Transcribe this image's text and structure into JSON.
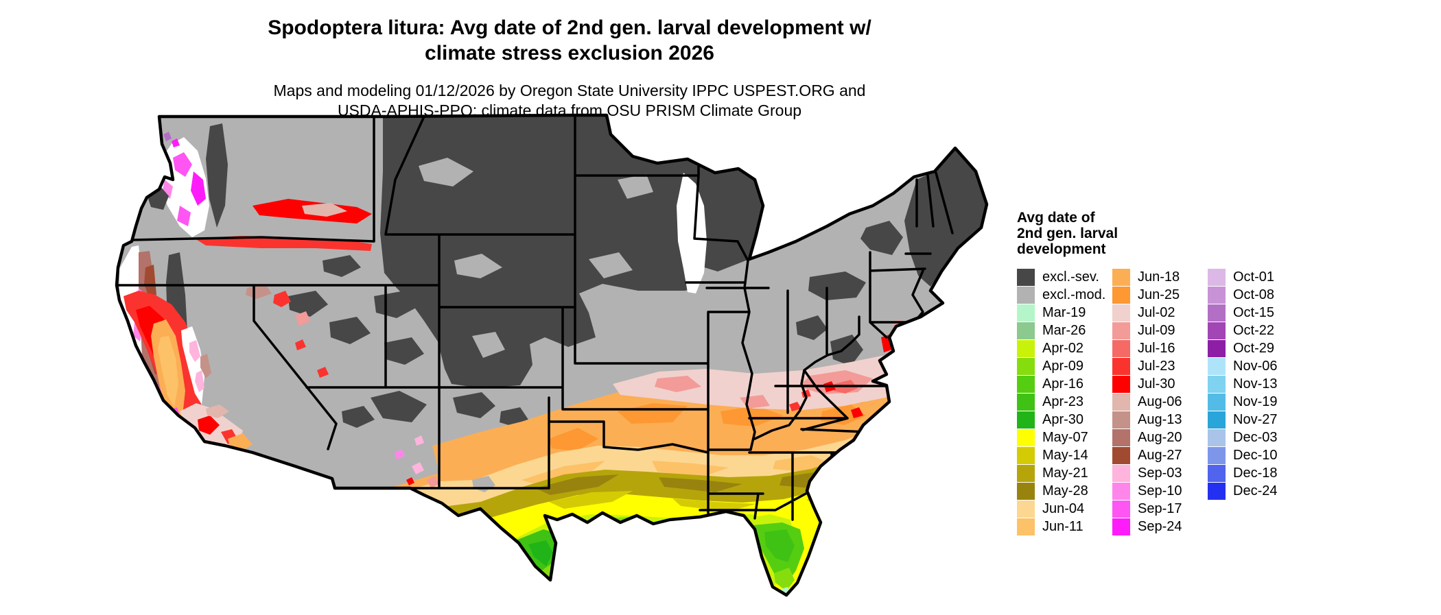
{
  "title": {
    "line1": "Spodoptera litura: Avg date of 2nd gen. larval development w/",
    "line2": "climate stress exclusion 2026"
  },
  "subtitle": {
    "line1": "Maps and modeling 01/12/2026 by Oregon State University IPPC USPEST.ORG and",
    "line2": "USDA-APHIS-PPQ; climate data from OSU PRISM Climate Group"
  },
  "legend": {
    "title_lines": [
      "Avg date of",
      "2nd gen. larval",
      "development"
    ],
    "columns": [
      {
        "entries": [
          {
            "label": "excl.-sev.",
            "color_key": "excl_sev"
          },
          {
            "label": "excl.-mod.",
            "color_key": "excl_mod"
          },
          {
            "label": "Mar-19",
            "color_key": "mar19"
          },
          {
            "label": "Mar-26",
            "color_key": "mar26"
          },
          {
            "label": "Apr-02",
            "color_key": "apr02"
          },
          {
            "label": "Apr-09",
            "color_key": "apr09"
          },
          {
            "label": "Apr-16",
            "color_key": "apr16"
          },
          {
            "label": "Apr-23",
            "color_key": "apr23"
          },
          {
            "label": "Apr-30",
            "color_key": "apr30"
          },
          {
            "label": "May-07",
            "color_key": "may07"
          },
          {
            "label": "May-14",
            "color_key": "may14"
          },
          {
            "label": "May-21",
            "color_key": "may21"
          },
          {
            "label": "May-28",
            "color_key": "may28"
          },
          {
            "label": "Jun-04",
            "color_key": "jun04"
          },
          {
            "label": "Jun-11",
            "color_key": "jun11"
          }
        ]
      },
      {
        "entries": [
          {
            "label": "Jun-18",
            "color_key": "jun18"
          },
          {
            "label": "Jun-25",
            "color_key": "jun25"
          },
          {
            "label": "Jul-02",
            "color_key": "jul02"
          },
          {
            "label": "Jul-09",
            "color_key": "jul09"
          },
          {
            "label": "Jul-16",
            "color_key": "jul16"
          },
          {
            "label": "Jul-23",
            "color_key": "jul23"
          },
          {
            "label": "Jul-30",
            "color_key": "jul30"
          },
          {
            "label": "Aug-06",
            "color_key": "aug06"
          },
          {
            "label": "Aug-13",
            "color_key": "aug13"
          },
          {
            "label": "Aug-20",
            "color_key": "aug20"
          },
          {
            "label": "Aug-27",
            "color_key": "aug27"
          },
          {
            "label": "Sep-03",
            "color_key": "sep03"
          },
          {
            "label": "Sep-10",
            "color_key": "sep10"
          },
          {
            "label": "Sep-17",
            "color_key": "sep17"
          },
          {
            "label": "Sep-24",
            "color_key": "sep24"
          }
        ]
      },
      {
        "entries": [
          {
            "label": "Oct-01",
            "color_key": "oct01"
          },
          {
            "label": "Oct-08",
            "color_key": "oct08"
          },
          {
            "label": "Oct-15",
            "color_key": "oct15"
          },
          {
            "label": "Oct-22",
            "color_key": "oct22"
          },
          {
            "label": "Oct-29",
            "color_key": "oct29"
          },
          {
            "label": "Nov-06",
            "color_key": "nov06"
          },
          {
            "label": "Nov-13",
            "color_key": "nov13"
          },
          {
            "label": "Nov-19",
            "color_key": "nov19"
          },
          {
            "label": "Nov-27",
            "color_key": "nov27"
          },
          {
            "label": "Dec-03",
            "color_key": "dec03"
          },
          {
            "label": "Dec-10",
            "color_key": "dec10"
          },
          {
            "label": "Dec-18",
            "color_key": "dec18"
          },
          {
            "label": "Dec-24",
            "color_key": "dec24"
          }
        ]
      }
    ]
  },
  "map": {
    "region": "Contiguous United States choropleth of average date of 2nd generation larval development with climate stress exclusion",
    "palette": {
      "white": "#ffffff",
      "excl_sev": "#474747",
      "excl_mod": "#b2b2b2",
      "mar19": "#b4f6ca",
      "mar26": "#8bc98f",
      "apr02": "#c9f20a",
      "apr09": "#86dd0d",
      "apr16": "#55ce11",
      "apr23": "#3fc214",
      "apr30": "#21b418",
      "may07": "#ffff00",
      "may14": "#d5cb05",
      "may21": "#b5a50b",
      "may28": "#98830e",
      "jun04": "#fcd792",
      "jun11": "#fdc167",
      "jun18": "#fcae55",
      "jun25": "#fd9832",
      "jul02": "#f1d1cd",
      "jul09": "#f29b98",
      "jul16": "#f66a66",
      "jul23": "#fb332e",
      "jul30": "#fe0000",
      "aug06": "#e1b6ad",
      "aug13": "#c49289",
      "aug20": "#b3726a",
      "aug27": "#a14a32",
      "sep03": "#feb4dc",
      "sep10": "#fe86ea",
      "sep17": "#fe55f3",
      "sep24": "#fe1cfa",
      "oct01": "#dcb8e6",
      "oct08": "#c893d6",
      "oct15": "#b36fc6",
      "oct22": "#a245b5",
      "oct29": "#8c1fa6",
      "nov06": "#aee4fa",
      "nov13": "#7fd2f0",
      "nov19": "#53bce6",
      "nov27": "#29a5d9",
      "dec03": "#a9c4e8",
      "dec10": "#7e96ea",
      "dec18": "#5064ed",
      "dec24": "#2430f1"
    }
  }
}
